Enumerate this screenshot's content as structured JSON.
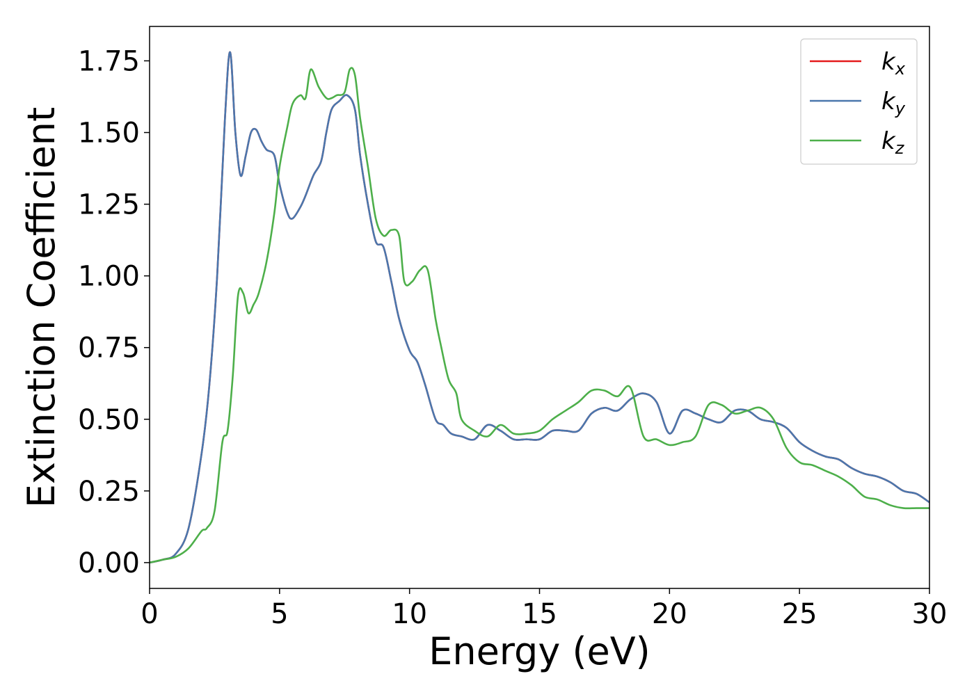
{
  "chart_data": {
    "type": "line",
    "title": "",
    "xlabel": "Energy (eV)",
    "ylabel": "Extinction Coefficient",
    "xlim": [
      0,
      30
    ],
    "ylim": [
      -0.09,
      1.87
    ],
    "xticks": [
      0,
      5,
      10,
      15,
      20,
      25,
      30
    ],
    "xtick_labels": [
      "0",
      "5",
      "10",
      "15",
      "20",
      "25",
      "30"
    ],
    "yticks": [
      0.0,
      0.25,
      0.5,
      0.75,
      1.0,
      1.25,
      1.5,
      1.75
    ],
    "ytick_labels": [
      "0.00",
      "0.25",
      "0.50",
      "0.75",
      "1.00",
      "1.25",
      "1.50",
      "1.75"
    ],
    "grid": false,
    "legend_position": "top-right",
    "series": [
      {
        "name": "kx",
        "label_main": "k",
        "label_sub": "x",
        "color": "#e41a1c",
        "x": [
          0,
          0.5,
          1.0,
          1.5,
          2.0,
          2.3,
          2.6,
          2.9,
          3.1,
          3.3,
          3.5,
          3.7,
          3.9,
          4.1,
          4.3,
          4.5,
          4.8,
          5.0,
          5.3,
          5.5,
          5.8,
          6.0,
          6.3,
          6.6,
          6.8,
          7.0,
          7.3,
          7.6,
          7.9,
          8.1,
          8.4,
          8.7,
          9.0,
          9.3,
          9.6,
          10.0,
          10.3,
          10.6,
          11.0,
          11.3,
          11.6,
          12.0,
          12.5,
          13.0,
          13.5,
          14.0,
          14.5,
          15.0,
          15.5,
          16.0,
          16.5,
          17.0,
          17.5,
          18.0,
          18.5,
          19.0,
          19.5,
          20.0,
          20.5,
          21.0,
          21.5,
          22.0,
          22.5,
          23.0,
          23.5,
          24.0,
          24.5,
          25.0,
          25.5,
          26.0,
          26.5,
          27.0,
          27.5,
          28.0,
          28.5,
          29.0,
          29.5,
          30.0
        ],
        "y": [
          0,
          0.01,
          0.03,
          0.12,
          0.38,
          0.62,
          1.0,
          1.55,
          1.78,
          1.5,
          1.35,
          1.42,
          1.5,
          1.51,
          1.47,
          1.44,
          1.42,
          1.32,
          1.22,
          1.2,
          1.24,
          1.28,
          1.35,
          1.4,
          1.5,
          1.58,
          1.61,
          1.63,
          1.58,
          1.42,
          1.25,
          1.12,
          1.1,
          0.98,
          0.85,
          0.74,
          0.7,
          0.62,
          0.5,
          0.48,
          0.45,
          0.44,
          0.43,
          0.48,
          0.46,
          0.43,
          0.43,
          0.43,
          0.46,
          0.46,
          0.46,
          0.52,
          0.54,
          0.53,
          0.57,
          0.59,
          0.56,
          0.45,
          0.53,
          0.52,
          0.5,
          0.49,
          0.53,
          0.53,
          0.5,
          0.49,
          0.47,
          0.42,
          0.39,
          0.37,
          0.36,
          0.33,
          0.31,
          0.3,
          0.28,
          0.25,
          0.24,
          0.21
        ]
      },
      {
        "name": "ky",
        "label_main": "k",
        "label_sub": "y",
        "color": "#4a77ad",
        "x": [
          0,
          0.5,
          1.0,
          1.5,
          2.0,
          2.3,
          2.6,
          2.9,
          3.1,
          3.3,
          3.5,
          3.7,
          3.9,
          4.1,
          4.3,
          4.5,
          4.8,
          5.0,
          5.3,
          5.5,
          5.8,
          6.0,
          6.3,
          6.6,
          6.8,
          7.0,
          7.3,
          7.6,
          7.9,
          8.1,
          8.4,
          8.7,
          9.0,
          9.3,
          9.6,
          10.0,
          10.3,
          10.6,
          11.0,
          11.3,
          11.6,
          12.0,
          12.5,
          13.0,
          13.5,
          14.0,
          14.5,
          15.0,
          15.5,
          16.0,
          16.5,
          17.0,
          17.5,
          18.0,
          18.5,
          19.0,
          19.5,
          20.0,
          20.5,
          21.0,
          21.5,
          22.0,
          22.5,
          23.0,
          23.5,
          24.0,
          24.5,
          25.0,
          25.5,
          26.0,
          26.5,
          27.0,
          27.5,
          28.0,
          28.5,
          29.0,
          29.5,
          30.0
        ],
        "y": [
          0,
          0.01,
          0.03,
          0.12,
          0.38,
          0.62,
          1.0,
          1.55,
          1.78,
          1.5,
          1.35,
          1.42,
          1.5,
          1.51,
          1.47,
          1.44,
          1.42,
          1.32,
          1.22,
          1.2,
          1.24,
          1.28,
          1.35,
          1.4,
          1.5,
          1.58,
          1.61,
          1.63,
          1.58,
          1.42,
          1.25,
          1.12,
          1.1,
          0.98,
          0.85,
          0.74,
          0.7,
          0.62,
          0.5,
          0.48,
          0.45,
          0.44,
          0.43,
          0.48,
          0.46,
          0.43,
          0.43,
          0.43,
          0.46,
          0.46,
          0.46,
          0.52,
          0.54,
          0.53,
          0.57,
          0.59,
          0.56,
          0.45,
          0.53,
          0.52,
          0.5,
          0.49,
          0.53,
          0.53,
          0.5,
          0.49,
          0.47,
          0.42,
          0.39,
          0.37,
          0.36,
          0.33,
          0.31,
          0.3,
          0.28,
          0.25,
          0.24,
          0.21
        ]
      },
      {
        "name": "kz",
        "label_main": "k",
        "label_sub": "z",
        "color": "#4daf4a",
        "x": [
          0,
          0.5,
          1.0,
          1.5,
          2.0,
          2.2,
          2.5,
          2.8,
          3.0,
          3.2,
          3.4,
          3.6,
          3.8,
          4.0,
          4.2,
          4.5,
          4.8,
          5.0,
          5.3,
          5.5,
          5.8,
          6.0,
          6.2,
          6.5,
          6.8,
          7.0,
          7.2,
          7.5,
          7.7,
          7.9,
          8.1,
          8.4,
          8.7,
          9.0,
          9.3,
          9.6,
          9.8,
          10.1,
          10.4,
          10.7,
          11.0,
          11.2,
          11.5,
          11.8,
          12.0,
          12.5,
          13.0,
          13.5,
          14.0,
          14.5,
          15.0,
          15.5,
          16.0,
          16.5,
          17.0,
          17.5,
          18.0,
          18.5,
          19.0,
          19.5,
          20.0,
          20.5,
          21.0,
          21.5,
          22.0,
          22.5,
          23.0,
          23.5,
          24.0,
          24.5,
          25.0,
          25.5,
          26.0,
          26.5,
          27.0,
          27.5,
          28.0,
          28.5,
          29.0,
          29.5,
          30.0
        ],
        "y": [
          0,
          0.01,
          0.02,
          0.05,
          0.11,
          0.12,
          0.18,
          0.42,
          0.46,
          0.65,
          0.93,
          0.94,
          0.87,
          0.9,
          0.94,
          1.05,
          1.22,
          1.38,
          1.52,
          1.6,
          1.63,
          1.62,
          1.72,
          1.66,
          1.62,
          1.62,
          1.63,
          1.64,
          1.72,
          1.7,
          1.55,
          1.38,
          1.2,
          1.14,
          1.16,
          1.14,
          0.98,
          0.98,
          1.02,
          1.02,
          0.85,
          0.76,
          0.64,
          0.59,
          0.5,
          0.46,
          0.44,
          0.48,
          0.45,
          0.45,
          0.46,
          0.5,
          0.53,
          0.56,
          0.6,
          0.6,
          0.58,
          0.61,
          0.44,
          0.43,
          0.41,
          0.42,
          0.44,
          0.55,
          0.55,
          0.52,
          0.53,
          0.54,
          0.5,
          0.4,
          0.35,
          0.34,
          0.32,
          0.3,
          0.27,
          0.23,
          0.22,
          0.2,
          0.19,
          0.19,
          0.19
        ]
      }
    ]
  }
}
